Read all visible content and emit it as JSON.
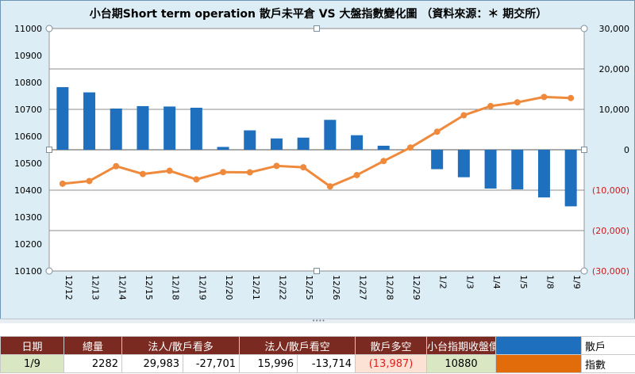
{
  "chart_data": {
    "type": "bar+line",
    "title": "小台期Short term operation 散戶未平倉 VS 大盤指數變化圖 （資料來源：＊ 期交所）",
    "categories": [
      "12/12",
      "12/13",
      "12/14",
      "12/15",
      "12/18",
      "12/19",
      "12/20",
      "12/21",
      "12/22",
      "12/25",
      "12/26",
      "12/27",
      "12/28",
      "12/29",
      "1/2",
      "1/3",
      "1/4",
      "1/5",
      "1/8",
      "1/9"
    ],
    "series": [
      {
        "name": "散戶",
        "type": "bar",
        "axis": "right",
        "color": "#1f6fbf",
        "values": [
          15500,
          14200,
          10200,
          10800,
          10700,
          10400,
          700,
          4800,
          2800,
          3000,
          7400,
          3600,
          1000,
          0,
          -4800,
          -6800,
          -9600,
          -9800,
          -11800,
          -14000
        ]
      },
      {
        "name": "指數",
        "type": "line",
        "axis": "left",
        "color": "#ef8a3c",
        "values": [
          10424,
          10434,
          10489,
          10460,
          10472,
          10440,
          10467,
          10466,
          10490,
          10485,
          10414,
          10456,
          10508,
          10558,
          10617,
          10678,
          10712,
          10726,
          10746,
          10742
        ]
      }
    ],
    "left_axis": {
      "min": 10100,
      "max": 11000,
      "step": 100,
      "ticks": [
        "10100",
        "10200",
        "10300",
        "10400",
        "10500",
        "10600",
        "10700",
        "10800",
        "10900",
        "11000"
      ]
    },
    "right_axis": {
      "min": -30000,
      "max": 30000,
      "step": 10000,
      "ticks": [
        "(30,000)",
        "(20,000)",
        "(10,000)",
        "0",
        "10,000",
        "20,000",
        "30,000"
      ]
    },
    "grid": true
  },
  "table": {
    "headers": [
      "日期",
      "總量",
      "法人/散戶看多",
      "法人/散戶看空",
      "散戶多空",
      "小台指期收盤價"
    ],
    "row": {
      "date": "1/9",
      "volume": "2282",
      "long_inst": "29,983",
      "long_retail": "-27,701",
      "short_inst": "15,996",
      "short_retail": "-13,714",
      "retail_net": "(13,987)",
      "close": "10880"
    },
    "legend": [
      {
        "label": "散戶",
        "color": "#1f6fbf"
      },
      {
        "label": "指數",
        "color": "#e36c0a"
      }
    ]
  }
}
